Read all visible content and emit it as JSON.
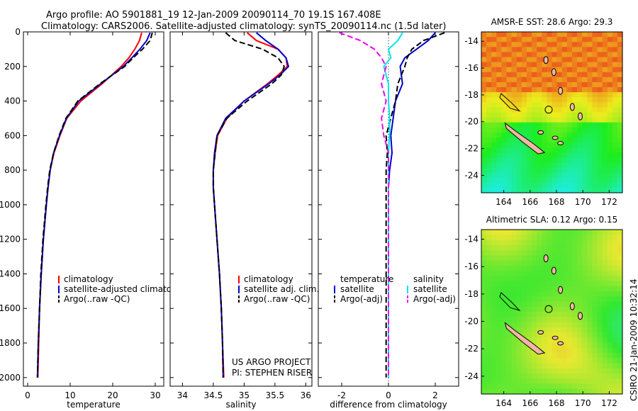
{
  "header": {
    "line1": "Argo profile: AO 5901881_19 12-Jan-2009 20090114_70 19.1S 167.408E",
    "line2": "Climatology: CARS2006. Satellite-adjusted climatology: synTS_20090114.nc (1.5d later)"
  },
  "side_label": "CSIRO 21-Jan-2009 10:32:14",
  "colors": {
    "clim": "#ff0000",
    "sat": "#0000cc",
    "argo": "#000000",
    "sat_sal": "#00e5ee",
    "argo_sal": "#ee00ee",
    "coast": "#000000",
    "land": "#f1b7a4"
  },
  "chart_data": [
    {
      "type": "line",
      "xlabel": "temperature",
      "xlim": [
        -1,
        32
      ],
      "ylim": [
        2050,
        0
      ],
      "x_ticks": [
        0,
        10,
        20,
        30
      ],
      "y_ticks": [
        0,
        200,
        400,
        600,
        800,
        1000,
        1200,
        1400,
        1600,
        1800,
        2000
      ],
      "legend": [
        "climatology",
        "satellite-adjusted climatology",
        "Argo(..raw -QC)"
      ],
      "depth": [
        5,
        50,
        100,
        150,
        200,
        300,
        400,
        500,
        600,
        700,
        800,
        900,
        1000,
        1200,
        1400,
        1600,
        1800,
        2000
      ],
      "series": [
        {
          "name": "climatology",
          "values": [
            26.8,
            26.3,
            25.2,
            23.8,
            22.0,
            17.5,
            12.5,
            9.2,
            7.6,
            6.2,
            5.3,
            4.8,
            4.4,
            3.7,
            3.2,
            2.8,
            2.6,
            2.4
          ]
        },
        {
          "name": "satellite-adjusted climatology",
          "values": [
            28.8,
            28.0,
            26.4,
            24.5,
            22.5,
            17.2,
            12.0,
            9.1,
            7.5,
            6.1,
            5.3,
            4.8,
            4.4,
            3.7,
            3.2,
            2.8,
            2.5,
            2.3
          ]
        },
        {
          "name": "Argo(..raw -QC)",
          "values": [
            29.3,
            28.8,
            27.0,
            24.8,
            22.8,
            17.0,
            11.8,
            9.0,
            7.4,
            6.1,
            5.2,
            4.7,
            4.3,
            3.6,
            3.1,
            2.8,
            2.5,
            2.3
          ]
        }
      ]
    },
    {
      "type": "line",
      "xlabel": "salinity",
      "xlim": [
        33.8,
        36.1
      ],
      "ylim": [
        2050,
        0
      ],
      "x_ticks": [
        34,
        34.5,
        35,
        35.5,
        36
      ],
      "legend": [
        "climatology",
        "satellite adj. clim.",
        "Argo(..raw -QC)"
      ],
      "annotation": [
        "US ARGO PROJECT",
        "PI: STEPHEN RISER"
      ],
      "depth": [
        5,
        50,
        100,
        150,
        200,
        250,
        300,
        400,
        500,
        600,
        700,
        800,
        900,
        1000,
        1200,
        1400,
        1600,
        1800,
        2000
      ],
      "series": [
        {
          "name": "climatology",
          "values": [
            35.05,
            35.2,
            35.55,
            35.68,
            35.7,
            35.55,
            35.38,
            35.0,
            34.72,
            34.57,
            34.53,
            34.5,
            34.5,
            34.52,
            34.56,
            34.6,
            34.63,
            34.65,
            34.67
          ]
        },
        {
          "name": "satellite adj. clim.",
          "values": [
            35.2,
            35.35,
            35.55,
            35.68,
            35.72,
            35.58,
            35.4,
            35.0,
            34.7,
            34.56,
            34.52,
            34.5,
            34.5,
            34.52,
            34.56,
            34.6,
            34.63,
            34.65,
            34.66
          ]
        },
        {
          "name": "Argo(..raw -QC)",
          "values": [
            34.7,
            34.85,
            35.3,
            35.55,
            35.65,
            35.6,
            35.45,
            35.05,
            34.72,
            34.56,
            34.53,
            34.5,
            34.5,
            34.52,
            34.56,
            34.6,
            34.63,
            34.65,
            34.66
          ]
        }
      ]
    },
    {
      "type": "line",
      "xlabel": "difference from climatology",
      "xlim": [
        -3,
        3
      ],
      "ylim": [
        2050,
        0
      ],
      "x_ticks": [
        -2,
        0,
        2
      ],
      "legend_headers": [
        "temperature",
        "salinity"
      ],
      "legend": [
        "satellite",
        "Argo(-adj)",
        "satellite",
        "Argo(-adj)"
      ],
      "depth": [
        5,
        50,
        100,
        150,
        200,
        300,
        400,
        500,
        600,
        700,
        800,
        900,
        1000,
        1200,
        1400,
        1600,
        1800,
        2000
      ],
      "series": [
        {
          "name": "temperature satellite",
          "values": [
            2.0,
            1.7,
            1.2,
            0.7,
            0.5,
            0.6,
            0.3,
            0.2,
            0.1,
            0.15,
            0.05,
            0.0,
            0.0,
            0.0,
            0.0,
            0.0,
            0.0,
            0.0
          ]
        },
        {
          "name": "temperature Argo(-adj)",
          "values": [
            2.4,
            1.5,
            1.0,
            0.8,
            0.7,
            0.4,
            0.3,
            0.1,
            -0.1,
            -0.05,
            -0.1,
            -0.1,
            -0.1,
            -0.1,
            -0.1,
            -0.1,
            -0.1,
            -0.1
          ]
        },
        {
          "name": "salinity satellite",
          "values": [
            0.6,
            0.4,
            0.0,
            0.1,
            -0.2,
            0.0,
            0.0,
            0.05,
            0.05,
            0.0,
            0.0,
            0.0,
            0.0,
            0.0,
            0.0,
            0.0,
            0.0,
            0.0
          ]
        },
        {
          "name": "salinity Argo(-adj)",
          "values": [
            -2.1,
            -1.2,
            -0.6,
            -0.3,
            -0.1,
            -0.3,
            -0.1,
            -0.3,
            -0.2,
            0.0,
            0.0,
            0.0,
            0.0,
            0.0,
            0.0,
            0.0,
            0.0,
            0.0
          ]
        }
      ]
    },
    {
      "type": "heatmap",
      "title": "AMSR-E SST: 28.6 Argo: 29.3",
      "x_ticks": [
        164,
        166,
        168,
        170,
        172
      ],
      "y_ticks": [
        -14,
        -16,
        -18,
        -20,
        -22,
        -24
      ],
      "xlim": [
        162.3,
        173.0
      ],
      "ylim": [
        -25.3,
        -13.3
      ],
      "profile_location": [
        167.408,
        -19.1
      ]
    },
    {
      "type": "heatmap",
      "title": "Altimetric SLA: 0.12 Argo: 0.15",
      "x_ticks": [
        164,
        166,
        168,
        170,
        172
      ],
      "y_ticks": [
        -14,
        -16,
        -18,
        -20,
        -22,
        -24
      ],
      "xlim": [
        162.3,
        173.0
      ],
      "ylim": [
        -25.3,
        -13.3
      ],
      "profile_location": [
        167.408,
        -19.1
      ]
    }
  ]
}
